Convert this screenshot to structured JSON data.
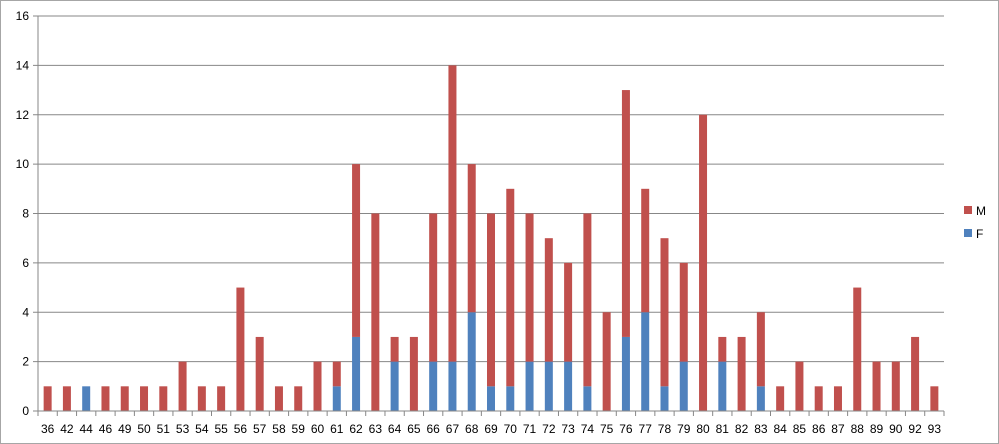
{
  "chart_data": {
    "type": "bar",
    "stacked": true,
    "categories": [
      "36",
      "42",
      "44",
      "46",
      "49",
      "50",
      "51",
      "53",
      "54",
      "55",
      "56",
      "57",
      "58",
      "59",
      "60",
      "61",
      "62",
      "63",
      "64",
      "65",
      "66",
      "67",
      "68",
      "69",
      "70",
      "71",
      "72",
      "73",
      "74",
      "75",
      "76",
      "77",
      "78",
      "79",
      "80",
      "81",
      "82",
      "83",
      "84",
      "85",
      "86",
      "87",
      "88",
      "89",
      "90",
      "92",
      "93"
    ],
    "series": [
      {
        "name": "F",
        "color": "#4f81bd",
        "values": [
          0,
          0,
          1,
          0,
          0,
          0,
          0,
          0,
          0,
          0,
          0,
          0,
          0,
          0,
          0,
          1,
          3,
          0,
          2,
          0,
          2,
          2,
          4,
          1,
          1,
          2,
          2,
          2,
          1,
          0,
          3,
          4,
          1,
          2,
          0,
          2,
          0,
          1,
          0,
          0,
          0,
          0,
          0,
          0,
          0,
          0,
          0
        ]
      },
      {
        "name": "M",
        "color": "#c0504d",
        "values": [
          1,
          1,
          0,
          1,
          1,
          1,
          1,
          2,
          1,
          1,
          5,
          3,
          1,
          1,
          2,
          1,
          7,
          8,
          1,
          3,
          6,
          12,
          6,
          7,
          8,
          6,
          5,
          4,
          7,
          4,
          10,
          5,
          6,
          4,
          12,
          1,
          3,
          3,
          1,
          2,
          1,
          1,
          5,
          2,
          2,
          3,
          1
        ]
      }
    ],
    "ylim": [
      0,
      16
    ],
    "yticks": [
      "0",
      "2",
      "4",
      "6",
      "8",
      "10",
      "12",
      "14",
      "16"
    ],
    "grid": true,
    "legend": "right",
    "legend_order": [
      "M",
      "F"
    ],
    "title": "",
    "xlabel": "",
    "ylabel": ""
  }
}
